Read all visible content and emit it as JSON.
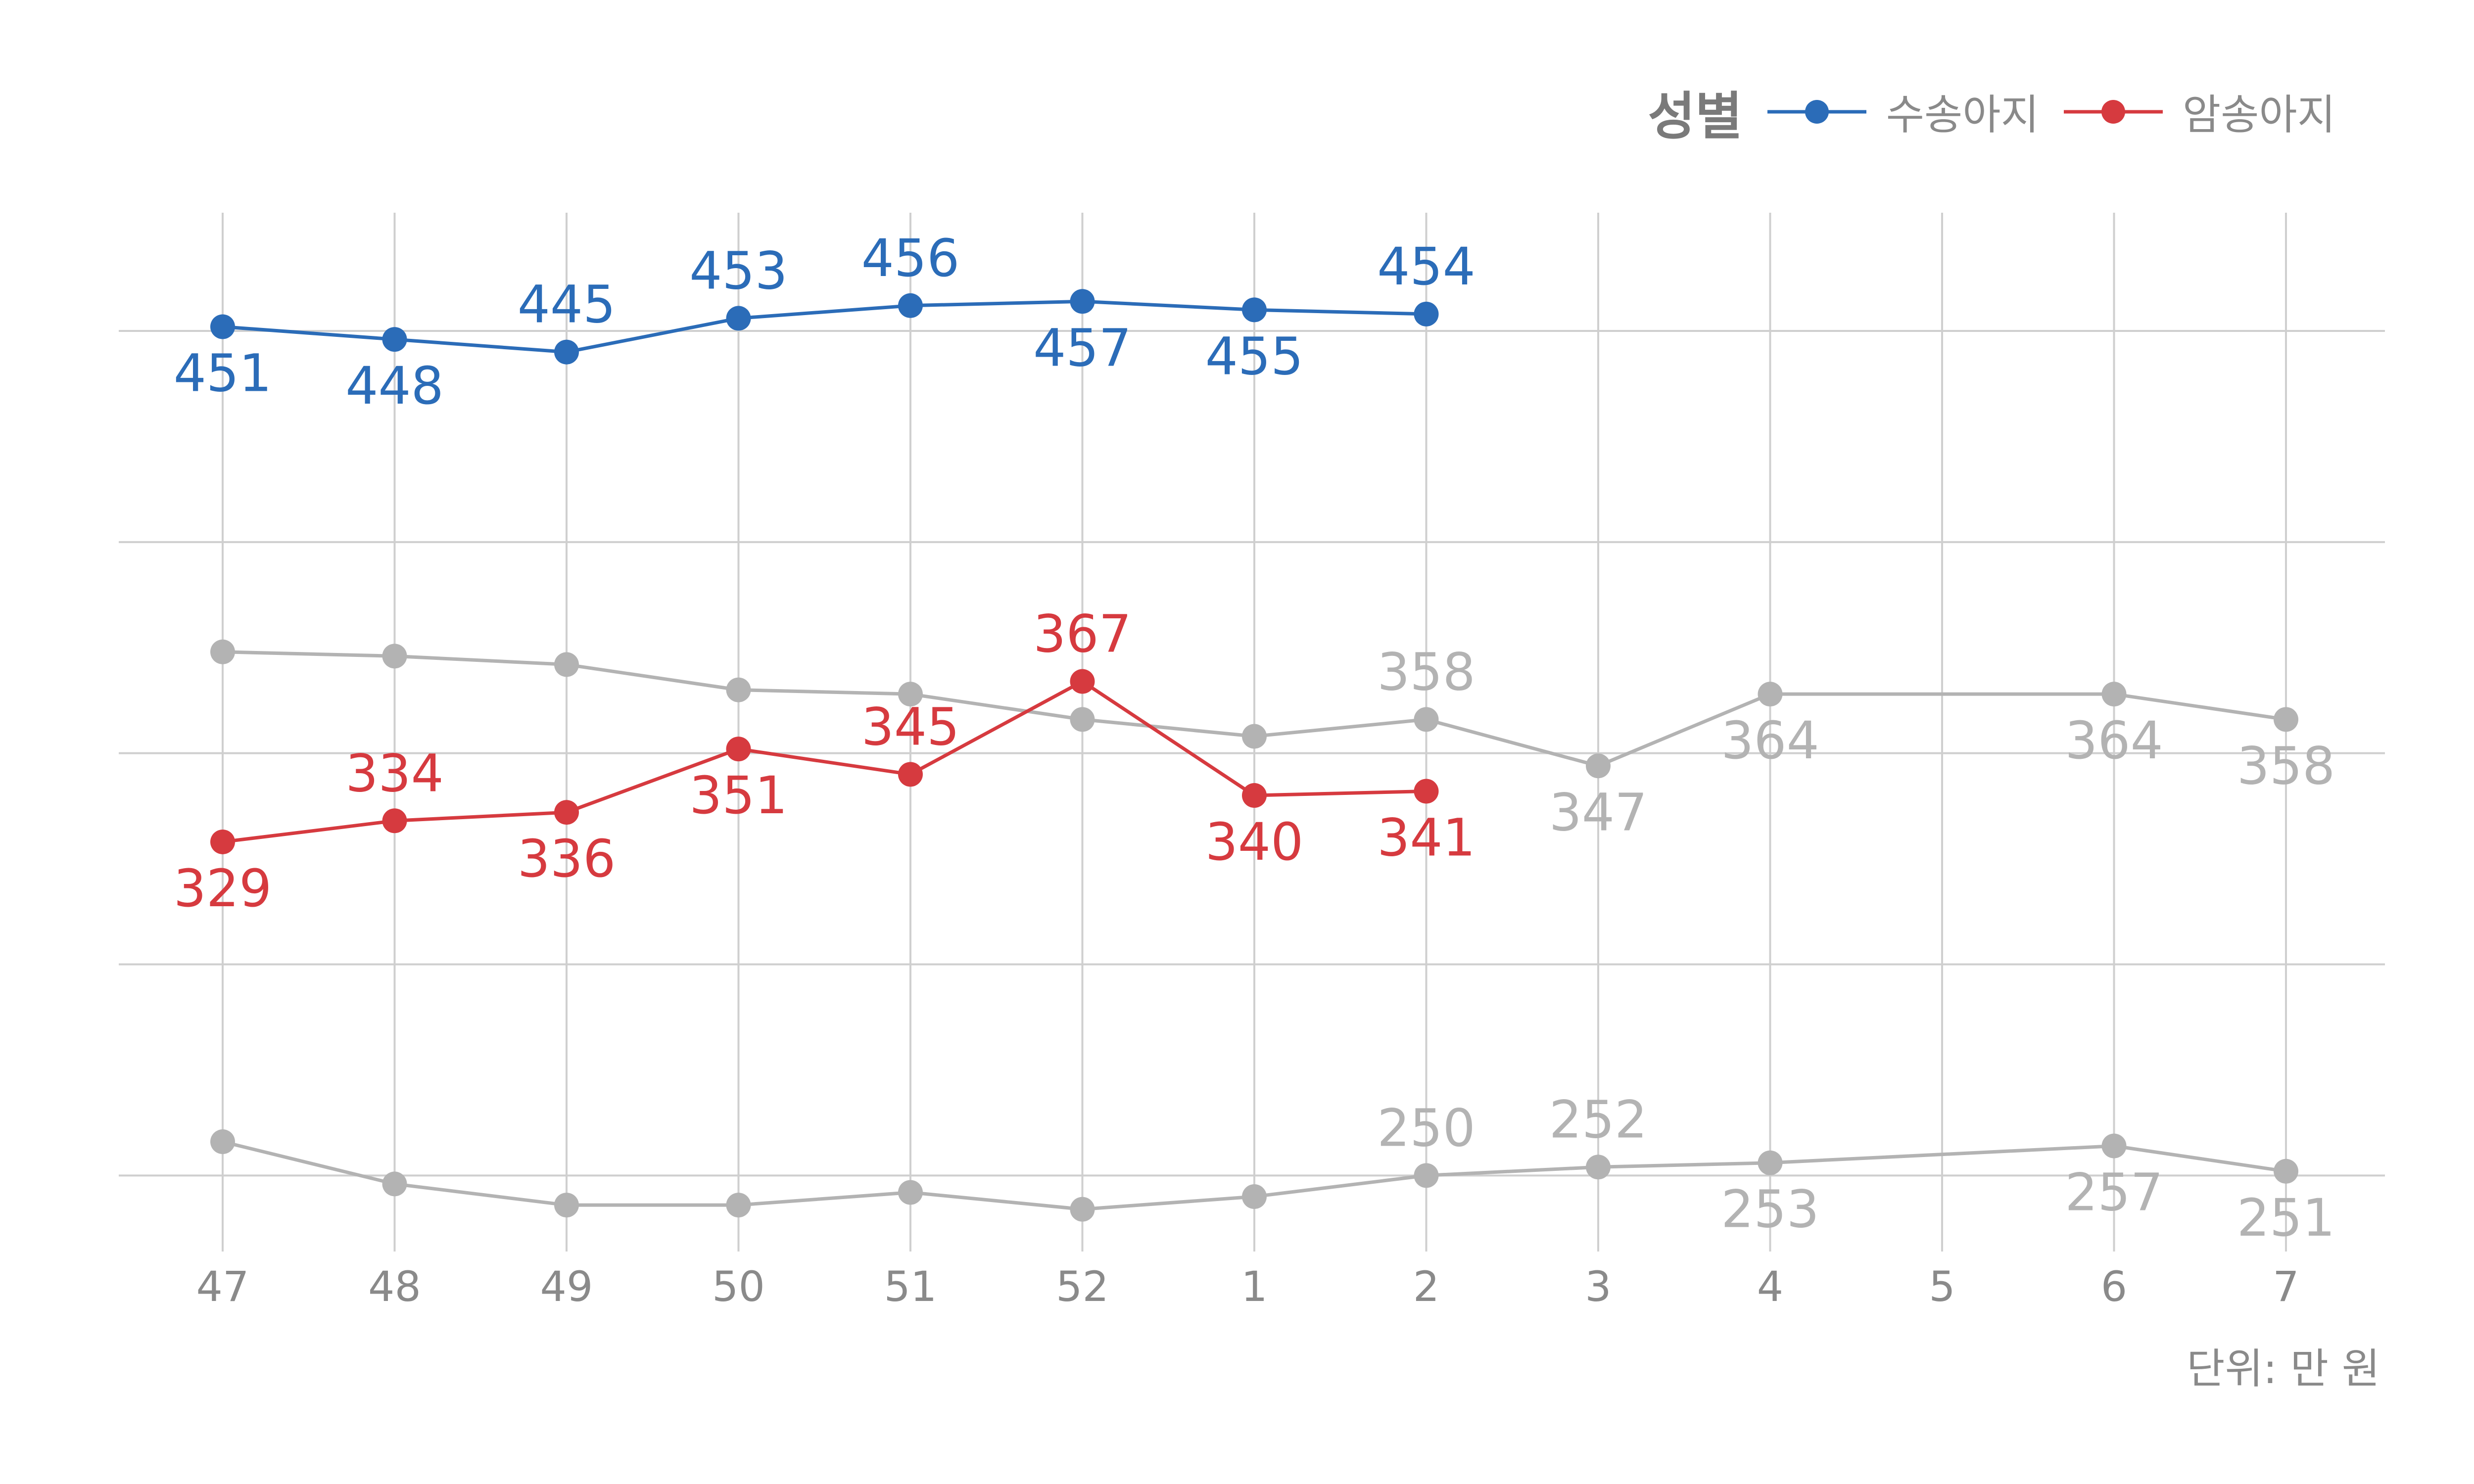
{
  "chart_data": {
    "type": "line",
    "categories": [
      "47",
      "48",
      "49",
      "50",
      "51",
      "52",
      "1",
      "2",
      "3",
      "4",
      "5",
      "6",
      "7"
    ],
    "legend": {
      "title": "성별",
      "placement": "top-right"
    },
    "unit": "단위: 만 원",
    "grid": true,
    "ylim": [
      232,
      478
    ],
    "series": [
      {
        "name": "수송아지",
        "color": "#2b6cb8",
        "in_legend": true,
        "values": [
          451,
          448,
          445,
          453,
          456,
          457,
          455,
          454,
          null,
          null,
          null,
          null,
          null
        ],
        "labels": [
          "451",
          "448",
          "445",
          "453",
          "456",
          "457",
          "455",
          "454",
          null,
          null,
          null,
          null,
          null
        ],
        "label_pos": [
          "below",
          "below",
          "above",
          "above",
          "above",
          "below",
          "below",
          "above",
          null,
          null,
          null,
          null,
          null
        ]
      },
      {
        "name": "암송아지",
        "color": "#d63a3f",
        "in_legend": true,
        "values": [
          329,
          334,
          336,
          351,
          345,
          367,
          340,
          341,
          null,
          null,
          null,
          null,
          null
        ],
        "labels": [
          "329",
          "334",
          "336",
          "351",
          "345",
          "367",
          "340",
          "341",
          null,
          null,
          null,
          null,
          null
        ],
        "label_pos": [
          "below",
          "above",
          "below",
          "below",
          "above",
          "above",
          "below",
          "below",
          null,
          null,
          null,
          null,
          null
        ]
      },
      {
        "color": "#b3b3b3",
        "in_legend": false,
        "values": [
          374,
          373,
          371,
          365,
          364,
          358,
          354,
          358,
          347,
          364,
          null,
          364,
          358
        ],
        "labels": [
          null,
          null,
          null,
          null,
          null,
          null,
          null,
          "358",
          "347",
          "364",
          null,
          "364",
          "358"
        ],
        "label_pos": [
          null,
          null,
          null,
          null,
          null,
          null,
          null,
          "above",
          "below",
          "below",
          null,
          "below",
          "below"
        ]
      },
      {
        "color": "#b3b3b3",
        "in_legend": false,
        "values": [
          258,
          248,
          243,
          243,
          246,
          242,
          245,
          250,
          252,
          253,
          null,
          257,
          251
        ],
        "labels": [
          null,
          null,
          null,
          null,
          null,
          null,
          null,
          "250",
          "252",
          "253",
          null,
          "257",
          "251"
        ],
        "label_pos": [
          null,
          null,
          null,
          null,
          null,
          null,
          null,
          "above",
          "above",
          "below",
          null,
          "below",
          "below"
        ]
      }
    ]
  }
}
